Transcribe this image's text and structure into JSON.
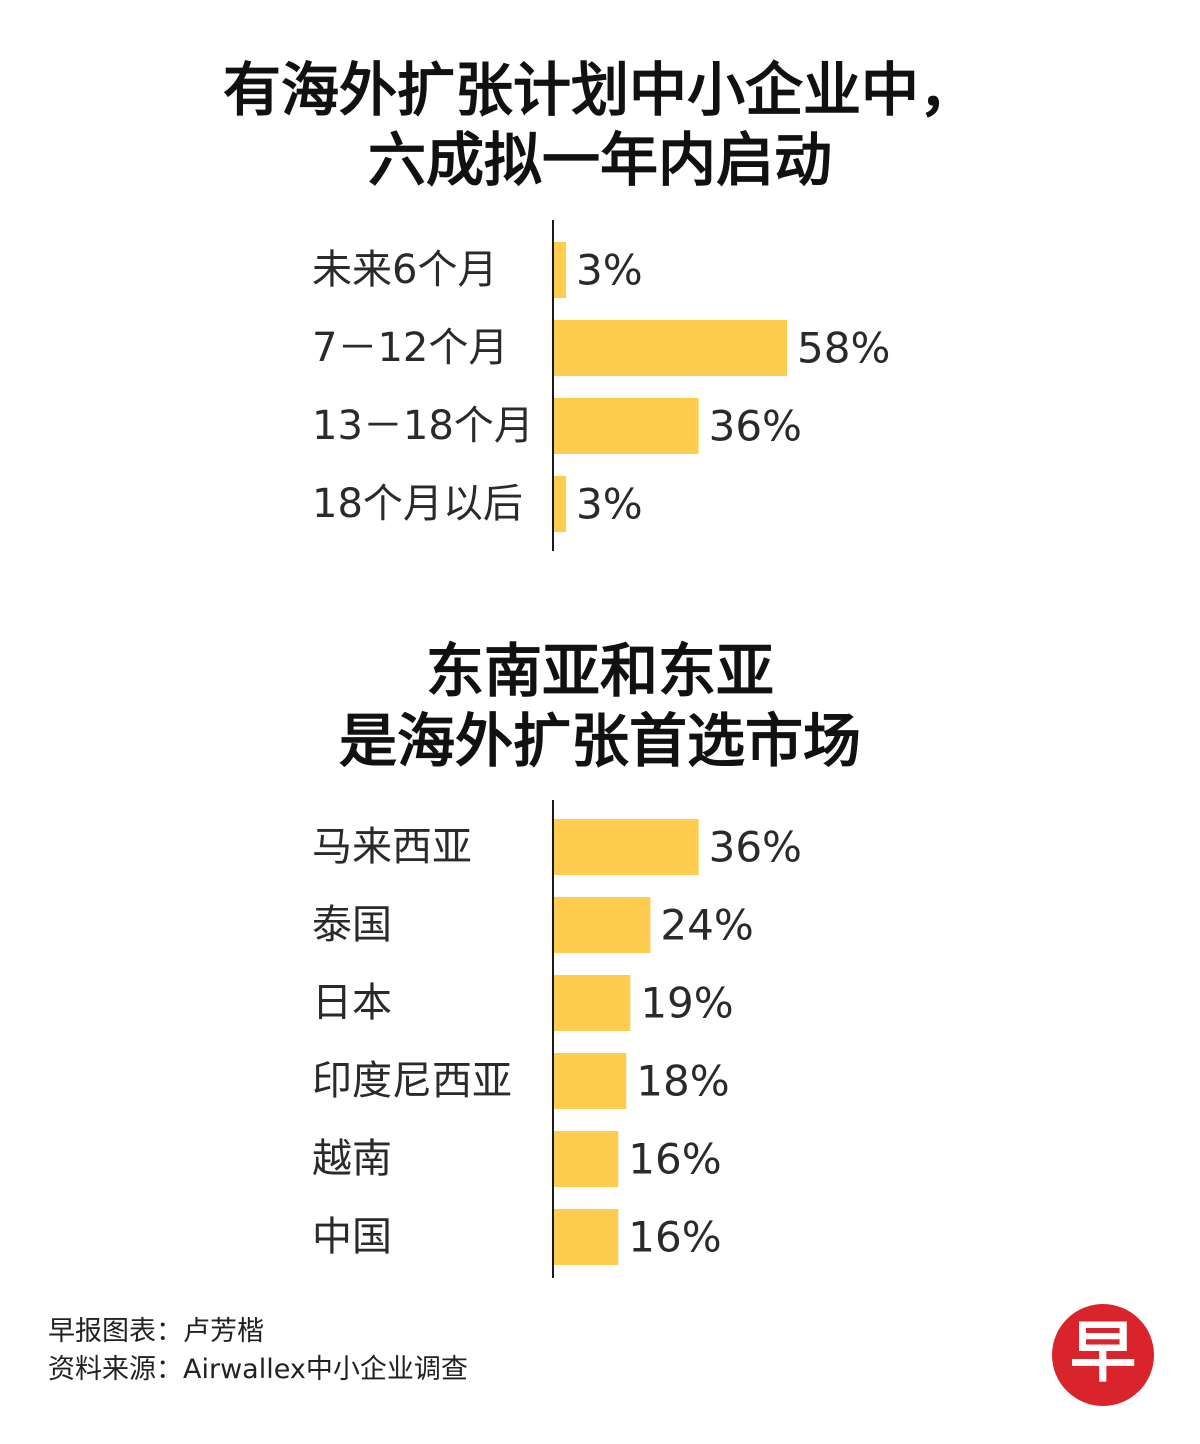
{
  "colors": {
    "bar": "#fecd4f",
    "axis": "#1a1a1a",
    "text": "#2a2a2a",
    "logo_bg": "#d9242b"
  },
  "chart_data": [
    {
      "type": "bar",
      "orientation": "horizontal",
      "title_lines": [
        "有海外扩张计划中小企业中，",
        "六成拟一年内启动"
      ],
      "categories": [
        "未来6个月",
        "7－12个月",
        "13－18个月",
        "18个月以后"
      ],
      "values": [
        3,
        58,
        36,
        3
      ],
      "value_labels": [
        "3%",
        "58%",
        "36%",
        "3%"
      ],
      "unit": "%"
    },
    {
      "type": "bar",
      "orientation": "horizontal",
      "title_lines": [
        "东南亚和东亚",
        "是海外扩张首选市场"
      ],
      "categories": [
        "马来西亚",
        "泰国",
        "日本",
        "印度尼西亚",
        "越南",
        "中国"
      ],
      "values": [
        36,
        24,
        19,
        18,
        16,
        16
      ],
      "value_labels": [
        "36%",
        "24%",
        "19%",
        "18%",
        "16%",
        "16%"
      ],
      "unit": "%"
    }
  ],
  "footer": {
    "credit": "早报图表：卢芳楷",
    "source": "资料来源：Airwallex中小企业调查"
  },
  "logo": {
    "icon": "zaobao-logo-icon",
    "text": "早"
  }
}
